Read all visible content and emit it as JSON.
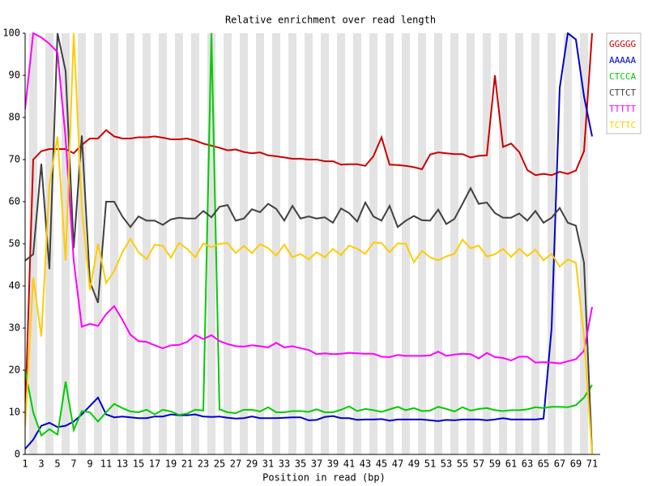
{
  "chart_data": {
    "type": "line",
    "title": "Relative enrichment over read length",
    "x_label": "Position in read (bp)",
    "categories": [
      "1",
      null,
      "3",
      null,
      "5",
      null,
      "7",
      null,
      "9",
      null,
      "11",
      null,
      "13",
      null,
      "15",
      null,
      "17",
      null,
      "19",
      null,
      "21",
      null,
      "23",
      null,
      "25",
      null,
      "27",
      null,
      "29",
      null,
      "31",
      null,
      "33",
      null,
      "35",
      null,
      "37",
      null,
      "39",
      null,
      "41",
      null,
      "43",
      null,
      "45",
      null,
      "47",
      null,
      "49",
      null,
      "51",
      null,
      "53",
      null,
      "55",
      null,
      "57",
      null,
      "59",
      null,
      "61",
      null,
      "63",
      null,
      "65",
      null,
      "67",
      null,
      "69",
      null,
      "71"
    ],
    "ylim": [
      0,
      100
    ],
    "yticks": [
      0,
      10,
      20,
      30,
      40,
      50,
      60,
      70,
      80,
      90,
      100
    ],
    "series": [
      {
        "name": "GGGGG",
        "color": "#cc0000",
        "values": [
          9,
          70,
          72,
          72.5,
          72.5,
          72.5,
          71.5,
          73.5,
          75,
          75,
          77,
          75.5,
          75,
          75,
          75.3,
          75.3,
          75.5,
          75.2,
          74.8,
          74.8,
          75,
          74.5,
          73.8,
          73.3,
          72.8,
          72.2,
          72.4,
          71.8,
          71.5,
          71.7,
          71,
          70.8,
          70.5,
          70.2,
          70.2,
          70,
          70,
          69.6,
          69.6,
          68.8,
          68.9,
          68.9,
          68.5,
          70.8,
          75.3,
          68.8,
          68.7,
          68.5,
          68.2,
          67.7,
          71.2,
          71.7,
          71.5,
          71.3,
          71.3,
          70.5,
          70.9,
          71,
          90,
          73,
          73.8,
          71.8,
          67.5,
          66.3,
          66.6,
          66.3,
          67.1,
          66.6,
          67.4,
          72,
          100
        ]
      },
      {
        "name": "AAAAA",
        "color": "#0000cc",
        "values": [
          1.3,
          3.5,
          6.8,
          7.5,
          6.5,
          6.8,
          7.8,
          9.5,
          11.5,
          13.5,
          9.5,
          8.8,
          9,
          8.8,
          8.6,
          8.6,
          9,
          9,
          9.5,
          9.3,
          9.3,
          9.5,
          9,
          8.9,
          9,
          8.7,
          8.5,
          8.6,
          9,
          8.6,
          8.6,
          8.6,
          8.7,
          8.8,
          8.8,
          8.1,
          8.2,
          8.9,
          9.1,
          8.6,
          8.6,
          8.2,
          8.3,
          8.3,
          8.4,
          8,
          8.3,
          8.3,
          8.3,
          8.3,
          8.1,
          7.9,
          8.2,
          8.1,
          8.3,
          8.3,
          8.3,
          8.1,
          8.3,
          8.6,
          8.3,
          8.3,
          8.3,
          8.3,
          8.5,
          30,
          87,
          100,
          98.5,
          85,
          75.5
        ]
      },
      {
        "name": "CTCCA",
        "color": "#00cc00",
        "values": [
          20,
          10,
          4.5,
          6,
          4.7,
          17.3,
          5.8,
          10.3,
          10,
          7.8,
          10,
          12,
          11,
          10.2,
          10,
          10.6,
          9.5,
          10.6,
          10.2,
          9.4,
          9.7,
          10.6,
          10.4,
          100,
          10.7,
          10,
          9.8,
          10.6,
          10.6,
          10.2,
          11.2,
          10,
          10,
          10.3,
          10.3,
          10.1,
          10.7,
          10,
          10,
          10.6,
          11.4,
          10.3,
          10.8,
          10.5,
          10.1,
          10.7,
          11.3,
          10.5,
          11,
          10.3,
          10.4,
          11.3,
          10.8,
          10.2,
          11.2,
          10.4,
          10.8,
          11,
          10.5,
          10.3,
          10.5,
          10.5,
          10.7,
          11.2,
          11,
          11.3,
          11.3,
          11.2,
          11.7,
          13.5,
          16.5
        ]
      },
      {
        "name": "CTTCT",
        "color": "#404040",
        "values": [
          46,
          47.5,
          69,
          44,
          100,
          91,
          49,
          75.7,
          41,
          36,
          60,
          60,
          56.5,
          54,
          56.5,
          55.5,
          55.5,
          54.5,
          55.8,
          56.2,
          56,
          56,
          57.8,
          56.3,
          58.8,
          59.2,
          55.5,
          56,
          58.2,
          57.5,
          59.5,
          58.3,
          55.5,
          59,
          56,
          56.5,
          56,
          56.3,
          55,
          58.4,
          57.3,
          55.3,
          59.8,
          56.5,
          55.5,
          59,
          54,
          55.5,
          56.6,
          55.6,
          55.5,
          58.1,
          54.7,
          55.9,
          59.5,
          63.2,
          59.5,
          59.8,
          57.3,
          56.2,
          56.2,
          57.2,
          55.5,
          57.8,
          55,
          56.2,
          58.5,
          55,
          54.3,
          45.5,
          0
        ]
      },
      {
        "name": "TTTTT",
        "color": "#ff00ff",
        "values": [
          82,
          100,
          99,
          97.5,
          95.5,
          75,
          46,
          30.3,
          31,
          30.5,
          33.3,
          35.2,
          32,
          28.4,
          26.9,
          26.7,
          25.9,
          25.2,
          25.9,
          26,
          26.7,
          28.3,
          27.4,
          28.3,
          26.9,
          26.2,
          25.7,
          25.6,
          25.9,
          25.7,
          25.4,
          26.5,
          25.4,
          25.7,
          25.2,
          24.8,
          23.8,
          24,
          23.8,
          23.9,
          24.1,
          24,
          23.9,
          23.9,
          23.2,
          23.1,
          23.6,
          23.4,
          23.4,
          23.4,
          23.5,
          24.4,
          23.4,
          23.7,
          23.9,
          23.8,
          22.8,
          24.1,
          23.1,
          22.9,
          22.3,
          23.2,
          23.2,
          21.8,
          21.9,
          21.8,
          21.6,
          22.1,
          22.6,
          24.6,
          35
        ]
      },
      {
        "name": "TCTTC",
        "color": "#ffcc00",
        "values": [
          6.5,
          42,
          28,
          64,
          75.5,
          46,
          100,
          58.5,
          39,
          50,
          40.7,
          43.5,
          48,
          51.2,
          48,
          46.4,
          49.8,
          49.5,
          46.7,
          50.2,
          48.8,
          46.8,
          50.1,
          49.2,
          50,
          50.2,
          47.8,
          49.5,
          47.8,
          49.9,
          49,
          47.2,
          49.8,
          46.8,
          47.6,
          46.3,
          48,
          46.8,
          48.8,
          47.3,
          49.6,
          48.8,
          47.6,
          50.3,
          50.2,
          48,
          50.1,
          50,
          45.6,
          48.3,
          46.8,
          46.1,
          47,
          47.6,
          51,
          48.9,
          49.6,
          47,
          47.5,
          48.8,
          46.9,
          48.8,
          47.1,
          48.6,
          46.1,
          47.6,
          44.6,
          46.3,
          45.5,
          28,
          0
        ]
      }
    ]
  }
}
